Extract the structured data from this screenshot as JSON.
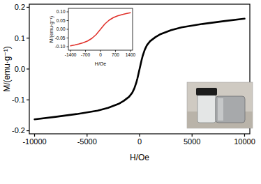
{
  "chart_data": [
    {
      "type": "line",
      "x_label": "H/Oe",
      "y_label": "M/(emu·g⁻¹)",
      "xlim": [
        -10500,
        10500
      ],
      "ylim": [
        -0.21,
        0.21
      ],
      "xticks": [
        -10000,
        -5000,
        0,
        5000,
        10000
      ],
      "yticks": [
        -0.2,
        -0.1,
        {
          "value": 0,
          "label": "0.0"
        },
        0.1,
        0.2
      ],
      "grid": false,
      "series": [
        {
          "name": null,
          "color": "#000000",
          "x": [
            -10000,
            -8000,
            -6000,
            -4000,
            -3000,
            -2000,
            -1500,
            -1000,
            -700,
            -500,
            -300,
            -200,
            -100,
            0,
            100,
            200,
            300,
            500,
            700,
            1000,
            1500,
            2000,
            3000,
            4000,
            6000,
            8000,
            10000
          ],
          "values": [
            -0.163,
            -0.155,
            -0.146,
            -0.135,
            -0.126,
            -0.113,
            -0.103,
            -0.09,
            -0.077,
            -0.063,
            -0.043,
            -0.03,
            -0.015,
            0,
            0.015,
            0.03,
            0.043,
            0.063,
            0.077,
            0.09,
            0.103,
            0.113,
            0.126,
            0.135,
            0.146,
            0.155,
            0.163
          ]
        }
      ]
    },
    {
      "type": "line",
      "x_label": "H/Oe",
      "y_label": "M/(emu·g⁻¹)",
      "xlim": [
        -1500,
        1500
      ],
      "ylim": [
        -0.12,
        0.12
      ],
      "xticks": [
        -1400,
        -700,
        0,
        700,
        1400
      ],
      "yticks": [
        {
          "value": -0.1,
          "label": "-0.10"
        },
        {
          "value": -0.05,
          "label": "-0.05"
        },
        {
          "value": 0,
          "label": "0.00"
        },
        {
          "value": 0.05,
          "label": "0.05"
        },
        {
          "value": 0.1,
          "label": "0.10"
        }
      ],
      "grid": false,
      "series": [
        {
          "name": null,
          "color": "#e0302a",
          "x": [
            -1400,
            -1200,
            -1000,
            -800,
            -600,
            -400,
            -200,
            0,
            200,
            400,
            600,
            800,
            1000,
            1200,
            1400
          ],
          "values": [
            -0.095,
            -0.09,
            -0.084,
            -0.077,
            -0.067,
            -0.052,
            -0.03,
            0,
            0.03,
            0.052,
            0.067,
            0.077,
            0.084,
            0.09,
            0.095
          ]
        }
      ]
    }
  ]
}
